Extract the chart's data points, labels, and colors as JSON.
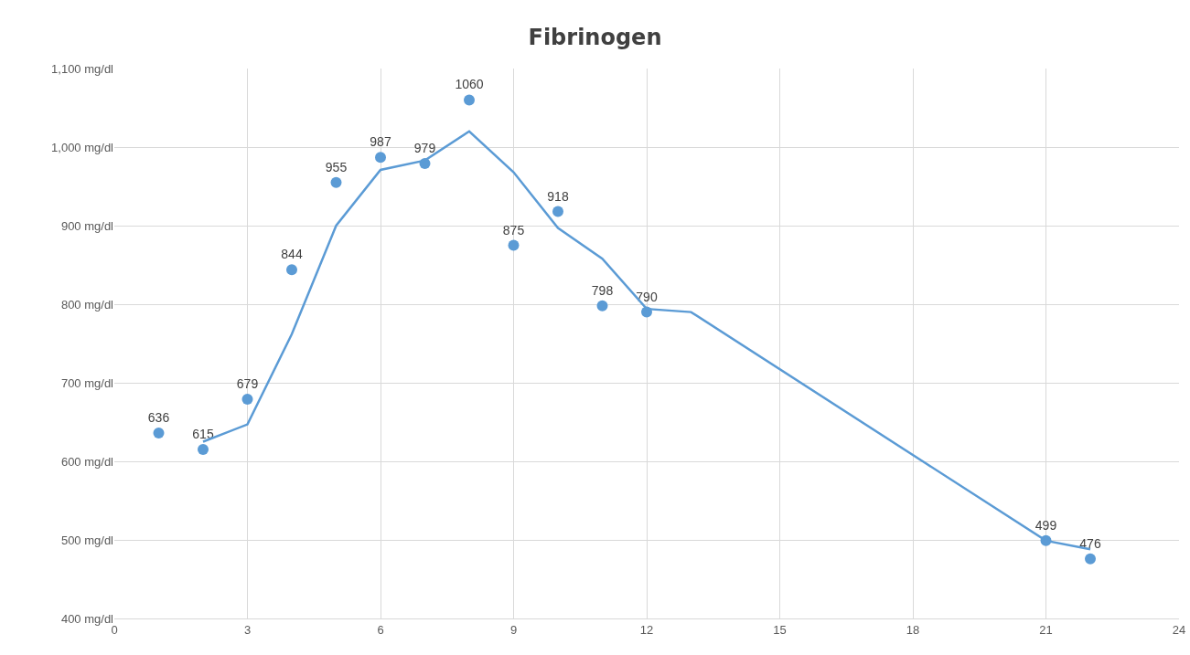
{
  "chart_data": {
    "type": "scatter",
    "title": "Fibrinogen",
    "xlim": [
      0,
      24
    ],
    "xticks": [
      0,
      3,
      6,
      9,
      12,
      15,
      18,
      21,
      24
    ],
    "ylim": [
      400,
      1100
    ],
    "yticks": [
      {
        "value": 400,
        "label": "400 mg/dl"
      },
      {
        "value": 500,
        "label": "500 mg/dl"
      },
      {
        "value": 600,
        "label": "600 mg/dl"
      },
      {
        "value": 700,
        "label": "700 mg/dl"
      },
      {
        "value": 800,
        "label": "800 mg/dl"
      },
      {
        "value": 900,
        "label": "900 mg/dl"
      },
      {
        "value": 1000,
        "label": "1,000 mg/dl"
      },
      {
        "value": 1100,
        "label": "1,100 mg/dl"
      }
    ],
    "grid": true,
    "series": [
      {
        "marker": "circle",
        "color": "#5b9bd5",
        "x": [
          1,
          2,
          3,
          4,
          5,
          6,
          7,
          8,
          9,
          10,
          11,
          12,
          21,
          22
        ],
        "values": [
          636,
          615,
          679,
          844,
          955,
          987,
          979,
          1060,
          875,
          918,
          798,
          790,
          499,
          476
        ],
        "value_labels": [
          "636",
          "615",
          "679",
          "844",
          "955",
          "987",
          "979",
          "1060",
          "875",
          "918",
          "798",
          "790",
          "499",
          "476"
        ]
      },
      {
        "type": "line",
        "marker": "none",
        "line_style": "solid",
        "color": "#5b9bd5",
        "x": [
          2,
          3,
          4,
          5,
          6,
          7,
          8,
          9,
          10,
          11,
          12,
          13,
          21,
          22
        ],
        "values": [
          625,
          647,
          762,
          900,
          971,
          983,
          1020,
          968,
          897,
          858,
          794,
          790,
          499,
          488
        ]
      }
    ]
  }
}
